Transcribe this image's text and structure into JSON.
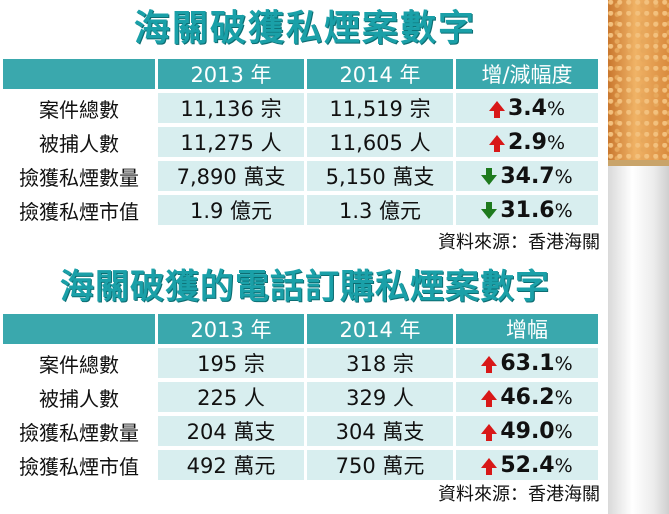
{
  "table1": {
    "title": "海關破獲私煙案數字",
    "headers": [
      "",
      "2013 年",
      "2014 年",
      "增/減幅度"
    ],
    "rows": [
      {
        "label": "案件總數",
        "y2013": "11,136 宗",
        "y2014": "11,519 宗",
        "direction": "up",
        "change": "3.4",
        "unit": "%"
      },
      {
        "label": "被捕人數",
        "y2013": "11,275 人",
        "y2014": "11,605 人",
        "direction": "up",
        "change": "2.9",
        "unit": "%"
      },
      {
        "label": "撿獲私煙數量",
        "y2013": "7,890 萬支",
        "y2014": "5,150 萬支",
        "direction": "down",
        "change": "34.7",
        "unit": "%"
      },
      {
        "label": "撿獲私煙市值",
        "y2013": "1.9 億元",
        "y2014": "1.3 億元",
        "direction": "down",
        "change": "31.6",
        "unit": "%"
      }
    ],
    "source": "資料來源：香港海關"
  },
  "table2": {
    "title": "海關破獲的電話訂購私煙案數字",
    "headers": [
      "",
      "2013 年",
      "2014 年",
      "增幅"
    ],
    "rows": [
      {
        "label": "案件總數",
        "y2013": "195 宗",
        "y2014": "318 宗",
        "direction": "up",
        "change": "63.1",
        "unit": "%"
      },
      {
        "label": "被捕人數",
        "y2013": "225 人",
        "y2014": "329 人",
        "direction": "up",
        "change": "46.2",
        "unit": "%"
      },
      {
        "label": "撿獲私煙數量",
        "y2013": "204 萬支",
        "y2014": "304 萬支",
        "direction": "up",
        "change": "49.0",
        "unit": "%"
      },
      {
        "label": "撿獲私煙市值",
        "y2013": "492 萬元",
        "y2014": "750 萬元",
        "direction": "up",
        "change": "52.4",
        "unit": "%"
      }
    ],
    "source": "資料來源：香港海關"
  },
  "colors": {
    "accent": "#1aa0a8",
    "header_bg": "#3aa8ad",
    "row_bg": "#d8eeef",
    "up": "#d81818",
    "down": "#1e7a1e"
  },
  "icons": {
    "up": "up-arrow-icon",
    "down": "down-arrow-icon",
    "image": "cigarette-image"
  }
}
